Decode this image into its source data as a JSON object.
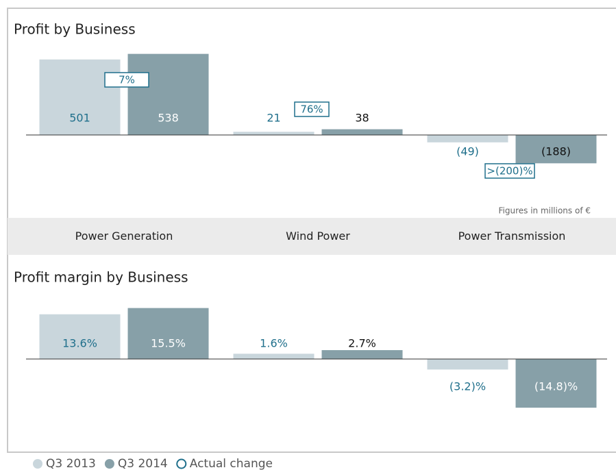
{
  "chart_data": [
    {
      "type": "bar",
      "title": "Profit by Business",
      "categories": [
        "Power Generation",
        "Wind Power",
        "Power Transmission"
      ],
      "series": [
        {
          "name": "Q3 2013",
          "color": "#c9d6dc",
          "values": [
            501,
            21,
            -49
          ],
          "value_labels": [
            "501",
            "21",
            "(49)"
          ]
        },
        {
          "name": "Q3 2014",
          "color": "#87a0a8",
          "values": [
            538,
            38,
            -188
          ],
          "value_labels": [
            "538",
            "38",
            "(188)"
          ]
        }
      ],
      "changes_name": "Actual change",
      "changes": [
        "7%",
        "76%",
        ">(200)%"
      ],
      "unit_note": "Figures in millions of €",
      "ylim": [
        -250,
        600
      ]
    },
    {
      "type": "bar",
      "title": "Profit margin by Business",
      "series": [
        {
          "name": "Q3 2013",
          "color": "#c9d6dc",
          "values": [
            13.6,
            1.6,
            -3.2
          ],
          "value_labels": [
            "13.6%",
            "1.6%",
            "(3.2)%"
          ]
        },
        {
          "name": "Q3 2014",
          "color": "#87a0a8",
          "values": [
            15.5,
            2.7,
            -14.8
          ],
          "value_labels": [
            "15.5%",
            "2.7%",
            "(14.8)%"
          ]
        }
      ],
      "ylim": [
        -18,
        18
      ]
    }
  ]
}
